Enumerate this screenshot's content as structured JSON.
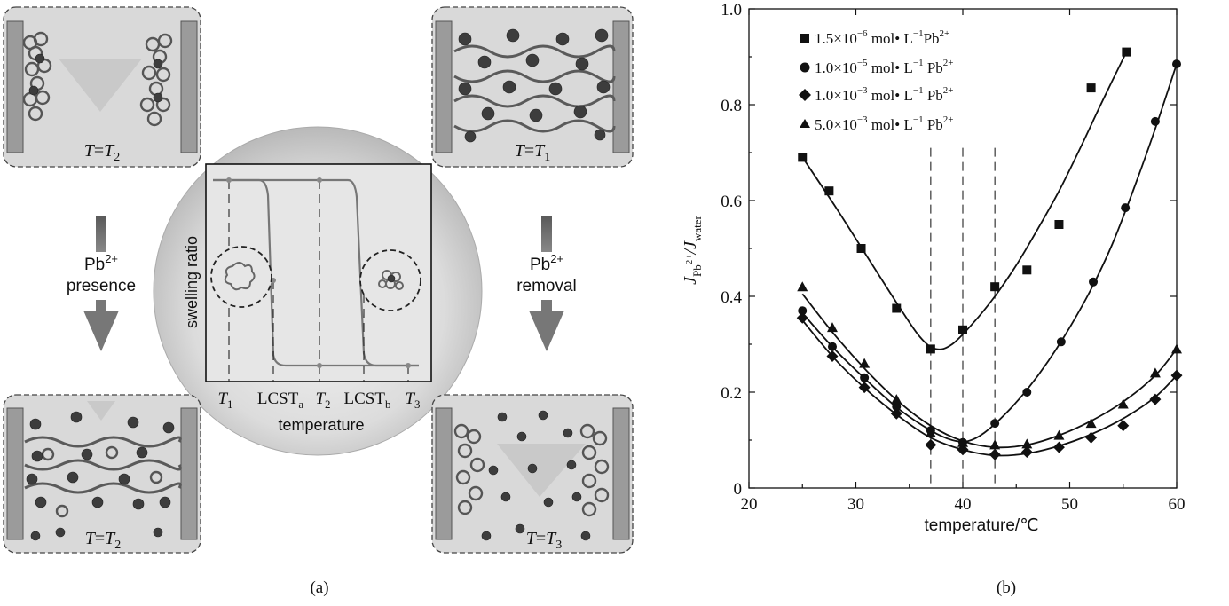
{
  "panel_a": {
    "label": "(a)",
    "top_left_caption": {
      "prefix": "T",
      "mid": "=",
      "var": "T",
      "sub": "2"
    },
    "top_right_caption": {
      "prefix": "T",
      "mid": "=",
      "var": "T",
      "sub": "1"
    },
    "bottom_left_caption": {
      "prefix": "T",
      "mid": "=",
      "var": "T",
      "sub": "2"
    },
    "bottom_right_caption": {
      "prefix": "T",
      "mid": "=",
      "var": "T",
      "sub": "3"
    },
    "left_arrow": {
      "ion": "Pb",
      "charge": "2+",
      "word": "presence"
    },
    "right_arrow": {
      "ion": "Pb",
      "charge": "2+",
      "word": "removal"
    },
    "inset": {
      "ylabel": "swelling ratio",
      "xlabel": "temperature",
      "ticks": [
        {
          "main": "T",
          "sub": "1"
        },
        {
          "main": "LCST",
          "sub": "a"
        },
        {
          "main": "T",
          "sub": "2"
        },
        {
          "main": "LCST",
          "sub": "b"
        },
        {
          "main": "T",
          "sub": "3"
        }
      ]
    }
  },
  "panel_b": {
    "label": "(b)"
  },
  "chart_data": {
    "type": "scatter",
    "xlabel": "temperature/℃",
    "ylabel": {
      "J": "J",
      "num_sub": "Pb",
      "num_sup": "2+",
      "den": "/J",
      "den_sub": "water"
    },
    "xlim": [
      20,
      60
    ],
    "ylim": [
      0,
      1.0
    ],
    "xticks": [
      20,
      30,
      40,
      50,
      60
    ],
    "yticks": [
      0,
      0.2,
      0.4,
      0.6,
      0.8,
      1.0
    ],
    "xtick_labels": [
      "20",
      "30",
      "40",
      "50",
      "60"
    ],
    "ytick_labels": [
      "0",
      "0.2",
      "0.4",
      "0.6",
      "0.8",
      "1.0"
    ],
    "vlines": [
      37,
      40,
      43
    ],
    "legend_position": "top-left",
    "series": [
      {
        "name": "1.5×10⁻⁶ mol·L⁻¹Pb²⁺",
        "legend": {
          "coef": "1.5×10",
          "exp": "−6",
          "unit": " mol• L",
          "uexp": "−1",
          "ion": "Pb",
          "charge": "2+"
        },
        "marker": "square",
        "x": [
          25,
          27.5,
          30.5,
          33.8,
          37,
          40,
          43,
          46,
          49,
          52,
          55.3
        ],
        "y": [
          0.69,
          0.62,
          0.5,
          0.375,
          0.29,
          0.33,
          0.42,
          0.455,
          0.55,
          0.835,
          0.91
        ],
        "fit_x": [
          25,
          28,
          31,
          34,
          36,
          37.5,
          39,
          41,
          43,
          45,
          47,
          49,
          51,
          53,
          55.3
        ],
        "fit_y": [
          0.69,
          0.59,
          0.485,
          0.38,
          0.315,
          0.29,
          0.3,
          0.345,
          0.4,
          0.465,
          0.54,
          0.62,
          0.71,
          0.805,
          0.91
        ]
      },
      {
        "name": "1.0×10⁻⁵ mol·L⁻¹ Pb²⁺",
        "legend": {
          "coef": "1.0×10",
          "exp": "−5",
          "unit": " mol• L",
          "uexp": "−1",
          "ion": " Pb",
          "charge": "2+"
        },
        "marker": "circle",
        "x": [
          25,
          27.8,
          30.8,
          33.8,
          37,
          40,
          43,
          46,
          49.2,
          52.2,
          55.2,
          58,
          60
        ],
        "y": [
          0.37,
          0.295,
          0.23,
          0.17,
          0.12,
          0.095,
          0.135,
          0.2,
          0.305,
          0.43,
          0.585,
          0.765,
          0.885
        ],
        "fit_x": [
          25,
          28,
          31,
          34,
          37,
          39,
          40.5,
          42,
          44,
          46,
          48,
          50,
          52,
          54,
          56,
          58,
          60
        ],
        "fit_y": [
          0.365,
          0.29,
          0.225,
          0.165,
          0.12,
          0.1,
          0.098,
          0.115,
          0.155,
          0.205,
          0.265,
          0.335,
          0.415,
          0.51,
          0.625,
          0.75,
          0.885
        ]
      },
      {
        "name": "1.0×10⁻³ mol·L⁻¹ Pb²⁺",
        "legend": {
          "coef": "1.0×10",
          "exp": "−3",
          "unit": " mol• L",
          "uexp": "−1",
          "ion": " Pb",
          "charge": "2+"
        },
        "marker": "diamond",
        "x": [
          25,
          27.8,
          30.8,
          33.8,
          37,
          40,
          43,
          46,
          49,
          52,
          55,
          58,
          60
        ],
        "y": [
          0.355,
          0.275,
          0.21,
          0.155,
          0.09,
          0.08,
          0.07,
          0.075,
          0.085,
          0.105,
          0.13,
          0.185,
          0.235
        ],
        "fit_x": [
          25,
          28,
          31,
          34,
          37,
          40,
          43,
          46,
          49,
          52,
          55,
          58,
          60
        ],
        "fit_y": [
          0.35,
          0.27,
          0.205,
          0.15,
          0.105,
          0.08,
          0.068,
          0.072,
          0.088,
          0.112,
          0.145,
          0.19,
          0.235
        ]
      },
      {
        "name": "5.0×10⁻³ mol·L⁻¹ Pb²⁺",
        "legend": {
          "coef": "5.0×10",
          "exp": "−3",
          "unit": " mol• L",
          "uexp": "−1",
          "ion": " Pb",
          "charge": "2+"
        },
        "marker": "triangle",
        "x": [
          25,
          27.8,
          30.8,
          33.8,
          37,
          40,
          43,
          46,
          49,
          52,
          55,
          58,
          60
        ],
        "y": [
          0.42,
          0.335,
          0.26,
          0.185,
          0.115,
          0.095,
          0.09,
          0.092,
          0.11,
          0.135,
          0.175,
          0.24,
          0.29
        ],
        "fit_x": [
          25,
          28,
          31,
          34,
          37,
          40,
          43,
          46,
          49,
          52,
          55,
          58,
          60
        ],
        "fit_y": [
          0.405,
          0.32,
          0.245,
          0.18,
          0.13,
          0.098,
          0.085,
          0.09,
          0.11,
          0.14,
          0.18,
          0.235,
          0.29
        ]
      }
    ]
  }
}
